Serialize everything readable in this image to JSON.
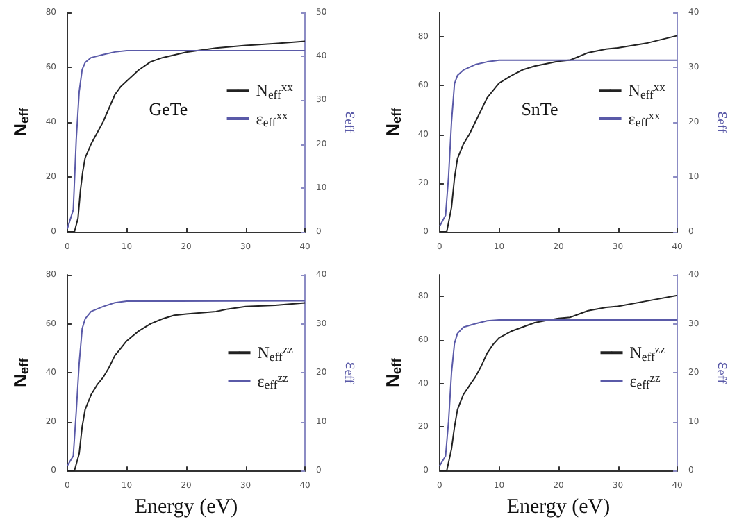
{
  "chart_data": [
    {
      "type": "line",
      "annotations": [
        "GeTe"
      ],
      "ylabel": "N$_{eff}$",
      "y2label": "ε$_{eff}$",
      "xlim": [
        0,
        40
      ],
      "xticks": [
        0,
        10,
        20,
        30,
        40
      ],
      "ylim": [
        0,
        80
      ],
      "yticks": [
        0,
        20,
        40,
        60,
        80
      ],
      "y2lim": [
        0,
        50
      ],
      "y2ticks": [
        0,
        10,
        20,
        30,
        40,
        50
      ],
      "legend": "right",
      "grid": false,
      "marker": "none",
      "series": [
        {
          "name": "N$_{eff}$$^{xx}$",
          "color": "#222222",
          "x": [
            0,
            1.2,
            1.8,
            2.2,
            2.6,
            3,
            4,
            5,
            6,
            7,
            8,
            9,
            10,
            12,
            14,
            16,
            18,
            20,
            25,
            30,
            35,
            40
          ],
          "values": [
            0,
            0,
            5,
            15,
            22,
            27,
            32,
            36,
            40,
            45,
            50,
            53,
            55,
            59,
            62,
            63.5,
            64.5,
            65.5,
            67,
            68,
            68.7,
            69.5
          ]
        },
        {
          "name": "ε$_{eff}$$^{xx}$",
          "color": "#5a5aa8",
          "axis": "y2",
          "x": [
            0,
            1,
            1.5,
            2,
            2.5,
            3,
            4,
            6,
            8,
            10,
            20,
            40
          ],
          "values": [
            0.7,
            5,
            21,
            32,
            37,
            38.6,
            39.7,
            40.4,
            41,
            41.3,
            41.3,
            41.3
          ]
        }
      ]
    },
    {
      "type": "line",
      "annotations": [
        "SnTe"
      ],
      "ylabel": "N$_{eff}$",
      "y2label": "ε$_{eff}$",
      "xlim": [
        0,
        40
      ],
      "xticks": [
        0,
        10,
        20,
        30,
        40
      ],
      "ylim": [
        0,
        90
      ],
      "yticks": [
        0,
        20,
        40,
        60,
        80
      ],
      "y2lim": [
        0,
        40
      ],
      "y2ticks": [
        0,
        10,
        20,
        30,
        40
      ],
      "legend": "right",
      "grid": false,
      "marker": "none",
      "series": [
        {
          "name": "N$_{eff}$$^{xx}$",
          "color": "#222222",
          "x": [
            0,
            1.2,
            2,
            2.5,
            3,
            4,
            5,
            6,
            7,
            8,
            9,
            10,
            12,
            14,
            16,
            18,
            20,
            22,
            23,
            25,
            28,
            30,
            35,
            40
          ],
          "values": [
            0,
            0,
            10,
            22,
            30,
            36,
            40,
            45,
            50,
            55,
            58,
            61,
            64,
            66.5,
            68,
            69,
            70,
            70.5,
            71.5,
            73.5,
            75,
            75.5,
            77.5,
            80.5
          ]
        },
        {
          "name": "ε$_{eff}$$^{xx}$",
          "color": "#5a5aa8",
          "axis": "y2",
          "x": [
            0,
            1,
            1.5,
            2,
            2.5,
            3,
            4,
            6,
            8,
            10,
            40
          ],
          "values": [
            1,
            3,
            10,
            20,
            27,
            28.5,
            29.5,
            30.5,
            31,
            31.3,
            31.3
          ]
        }
      ]
    },
    {
      "type": "line",
      "xlabel": "Energy (eV)",
      "ylabel": "N$_{eff}$",
      "y2label": "ε$_{eff}$",
      "xlim": [
        0,
        40
      ],
      "xticks": [
        0,
        10,
        20,
        30,
        40
      ],
      "ylim": [
        0,
        80
      ],
      "yticks": [
        0,
        20,
        40,
        60,
        80
      ],
      "y2lim": [
        0,
        40
      ],
      "y2ticks": [
        0,
        10,
        20,
        30,
        40
      ],
      "legend": "right",
      "grid": false,
      "marker": "none",
      "series": [
        {
          "name": "N$_{eff}$$^{zz}$",
          "color": "#222222",
          "x": [
            0,
            1.2,
            2,
            2.5,
            3,
            4,
            5,
            6,
            7,
            8,
            9,
            10,
            12,
            14,
            16,
            18,
            20,
            25,
            27,
            30,
            35,
            40
          ],
          "values": [
            0,
            0,
            7,
            18,
            25,
            31,
            35,
            38,
            42,
            47,
            50,
            53,
            57,
            60,
            62,
            63.5,
            64,
            65,
            66,
            67,
            67.5,
            68.5
          ]
        },
        {
          "name": "ε$_{eff}$$^{zz}$",
          "color": "#5a5aa8",
          "axis": "y2",
          "x": [
            0,
            1,
            1.5,
            2,
            2.5,
            3,
            4,
            6,
            8,
            10,
            40
          ],
          "values": [
            1,
            3,
            12,
            22,
            29,
            31,
            32.5,
            33.5,
            34.3,
            34.6,
            34.7
          ]
        }
      ]
    },
    {
      "type": "line",
      "xlabel": "Energy (eV)",
      "ylabel": "N$_{eff}$",
      "y2label": "ε$_{eff}$",
      "xlim": [
        0,
        40
      ],
      "xticks": [
        0,
        10,
        20,
        30,
        40
      ],
      "ylim": [
        0,
        90
      ],
      "yticks": [
        0,
        20,
        40,
        60,
        80
      ],
      "y2lim": [
        0,
        40
      ],
      "y2ticks": [
        0,
        10,
        20,
        30,
        40
      ],
      "legend": "right",
      "grid": false,
      "marker": "none",
      "series": [
        {
          "name": "N$_{eff}$$^{zz}$",
          "color": "#222222",
          "x": [
            0,
            1.2,
            2,
            2.5,
            3,
            4,
            5,
            6,
            7,
            8,
            9,
            10,
            12,
            14,
            16,
            18,
            20,
            22,
            23,
            25,
            28,
            30,
            35,
            40
          ],
          "values": [
            0,
            0,
            10,
            20,
            28,
            35,
            39,
            43,
            48,
            54,
            58,
            61,
            64,
            66,
            68,
            69,
            70,
            70.5,
            71.5,
            73.5,
            75,
            75.5,
            78,
            80.5
          ]
        },
        {
          "name": "ε$_{eff}$$^{zz}$",
          "color": "#5a5aa8",
          "axis": "y2",
          "x": [
            0,
            1,
            1.5,
            2,
            2.5,
            3,
            4,
            6,
            8,
            10,
            40
          ],
          "values": [
            1,
            3,
            10,
            20,
            26,
            28,
            29.3,
            30,
            30.6,
            30.8,
            30.8
          ]
        }
      ]
    }
  ]
}
